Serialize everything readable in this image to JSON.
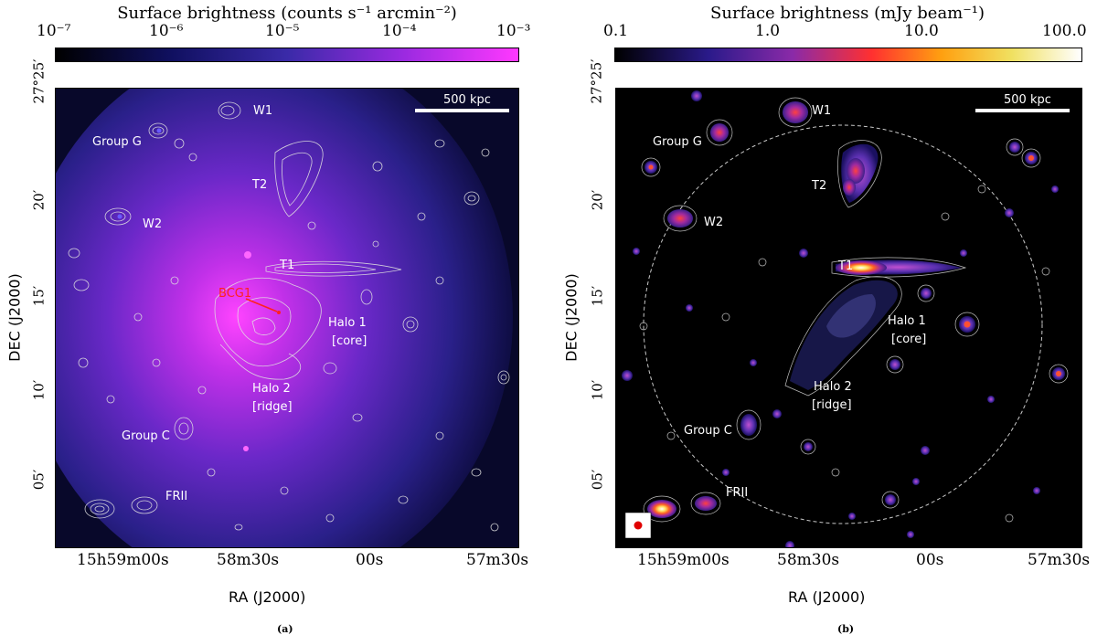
{
  "panel_a": {
    "colorbar": {
      "title": "Surface brightness (counts s⁻¹ arcmin⁻²)",
      "ticks": [
        "10⁻⁷",
        "10⁻⁶",
        "10⁻⁵",
        "10⁻⁴",
        "10⁻³"
      ],
      "colors": [
        "#000000",
        "#101060",
        "#3a2aa8",
        "#9a2ae0",
        "#ff38ff"
      ]
    },
    "dec_ticks": [
      "27°25′",
      "20′",
      "15′",
      "10′",
      "05′"
    ],
    "ra_ticks": [
      "15h59m00s",
      "58m30s",
      "00s",
      "57m30s"
    ],
    "xlabel": "RA (J2000)",
    "ylabel": "DEC (J2000)",
    "scalebar": "500 kpc",
    "labels": {
      "w1": "W1",
      "group_g": "Group G",
      "t2": "T2",
      "w2": "W2",
      "t1": "T1",
      "bcg1": "BCG1",
      "halo1": "Halo 1",
      "halo1_sub": "[core]",
      "halo2": "Halo 2",
      "halo2_sub": "[ridge]",
      "group_c": "Group C",
      "frii": "FRII"
    },
    "caption": "(a)"
  },
  "panel_b": {
    "colorbar": {
      "title": "Surface brightness (mJy beam⁻¹)",
      "ticks": [
        "0.1",
        "1.0",
        "10.0",
        "100.0"
      ],
      "colors": [
        "#000000",
        "#2a1a8a",
        "#8a2aa8",
        "#ff3030",
        "#ffa010",
        "#f0e060",
        "#ffffff"
      ]
    },
    "dec_ticks": [
      "27°25′",
      "20′",
      "15′",
      "10′",
      "05′"
    ],
    "ra_ticks": [
      "15h59m00s",
      "58m30s",
      "00s",
      "57m30s"
    ],
    "xlabel": "RA (J2000)",
    "ylabel": "DEC (J2000)",
    "scalebar": "500 kpc",
    "labels": {
      "w1": "W1",
      "group_g": "Group G",
      "t2": "T2",
      "w2": "W2",
      "t1": "T1",
      "halo1": "Halo 1",
      "halo1_sub": "[core]",
      "halo2": "Halo 2",
      "halo2_sub": "[ridge]",
      "group_c": "Group C",
      "frii": "FRII"
    },
    "caption": "(b)"
  }
}
